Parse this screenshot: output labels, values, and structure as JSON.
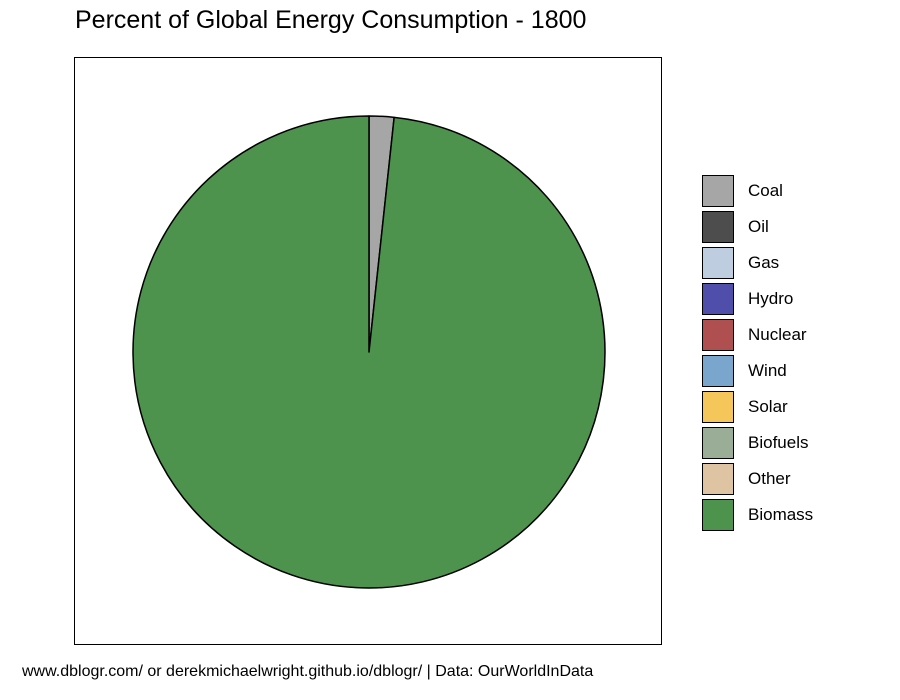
{
  "chart_data": {
    "type": "pie",
    "title": "Percent of Global Energy Consumption - 1800",
    "caption": "www.dblogr.com/ or derekmichaelwright.github.io/dblogr/ | Data: OurWorldInData",
    "legend_position": "right",
    "slices": [
      {
        "label": "Coal",
        "value": 1.7,
        "color": "#a6a6a6"
      },
      {
        "label": "Oil",
        "value": 0,
        "color": "#4d4d4d"
      },
      {
        "label": "Gas",
        "value": 0,
        "color": "#bfcde0"
      },
      {
        "label": "Hydro",
        "value": 0,
        "color": "#4f4eab"
      },
      {
        "label": "Nuclear",
        "value": 0,
        "color": "#b04f4f"
      },
      {
        "label": "Wind",
        "value": 0,
        "color": "#7aa5cc"
      },
      {
        "label": "Solar",
        "value": 0,
        "color": "#f5c65a"
      },
      {
        "label": "Biofuels",
        "value": 0,
        "color": "#9aad96"
      },
      {
        "label": "Other",
        "value": 0,
        "color": "#dfc4a3"
      },
      {
        "label": "Biomass",
        "value": 98.3,
        "color": "#4d924d"
      }
    ]
  }
}
